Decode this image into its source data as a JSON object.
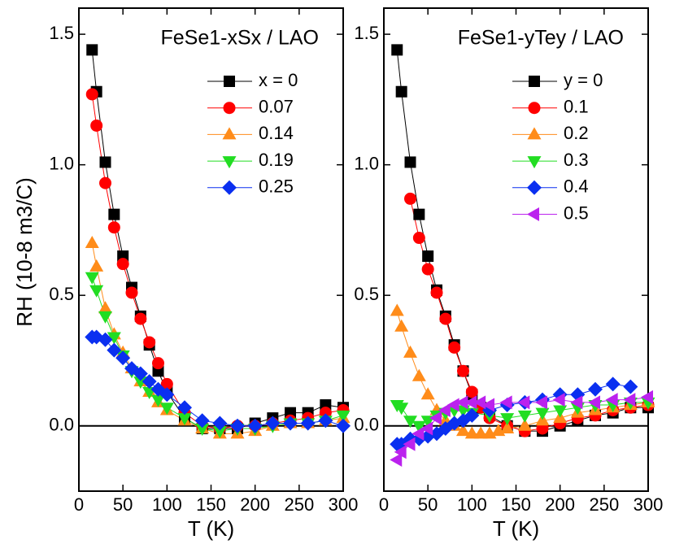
{
  "y_label": "RH (10-8 m3/C)",
  "chart_data": [
    {
      "type": "line",
      "title": "FeSe1-xSx / LAO",
      "x_label": "T (K)",
      "xlim": [
        0,
        300
      ],
      "xticks": [
        0,
        50,
        100,
        150,
        200,
        250,
        300
      ],
      "ylim": [
        -0.25,
        1.6
      ],
      "yticks": [
        {
          "value": 0,
          "label": "0.0"
        },
        0.5,
        {
          "value": 1,
          "label": "1.0"
        },
        1.5
      ],
      "series": [
        {
          "name": "x = 0",
          "color": "#000000",
          "marker": "square",
          "x": [
            15,
            20,
            30,
            40,
            50,
            60,
            70,
            80,
            90,
            100,
            120,
            140,
            160,
            180,
            200,
            220,
            240,
            260,
            280,
            300
          ],
          "values": [
            1.44,
            1.28,
            1.01,
            0.81,
            0.65,
            0.53,
            0.42,
            0.31,
            0.21,
            0.13,
            0.03,
            -0.01,
            -0.01,
            -0.01,
            0.01,
            0.03,
            0.05,
            0.05,
            0.08,
            0.07
          ]
        },
        {
          "name": "0.07",
          "color": "#ff0000",
          "marker": "circle",
          "x": [
            15,
            20,
            30,
            40,
            50,
            60,
            70,
            80,
            90,
            100,
            120,
            140,
            160,
            180,
            200,
            220,
            240,
            260,
            280,
            300
          ],
          "values": [
            1.27,
            1.15,
            0.93,
            0.76,
            0.62,
            0.51,
            0.41,
            0.32,
            0.24,
            0.16,
            0.05,
            0,
            -0.01,
            0,
            0,
            0.01,
            0.02,
            0.03,
            0.05,
            0.06
          ]
        },
        {
          "name": "0.14",
          "color": "#ff8c1a",
          "marker": "triangle-up",
          "x": [
            15,
            20,
            30,
            40,
            50,
            60,
            70,
            80,
            90,
            100,
            120,
            140,
            160,
            180,
            200,
            220,
            240,
            260,
            280,
            300
          ],
          "values": [
            0.7,
            0.61,
            0.45,
            0.35,
            0.28,
            0.22,
            0.17,
            0.13,
            0.09,
            0.06,
            0.02,
            -0.01,
            -0.03,
            -0.03,
            -0.02,
            0,
            0.01,
            0.01,
            0.02,
            0.03
          ]
        },
        {
          "name": "0.19",
          "color": "#22dd22",
          "marker": "triangle-down",
          "x": [
            15,
            20,
            30,
            40,
            50,
            60,
            70,
            80,
            90,
            100,
            120,
            140,
            160,
            180,
            200,
            220,
            240,
            260,
            280,
            300
          ],
          "values": [
            0.57,
            0.52,
            0.42,
            0.34,
            0.27,
            0.21,
            0.17,
            0.13,
            0.1,
            0.07,
            0.03,
            -0.01,
            -0.02,
            -0.01,
            -0.01,
            0,
            0.01,
            0.01,
            0.02,
            0.04
          ]
        },
        {
          "name": "0.25",
          "color": "#0a2ff0",
          "marker": "diamond",
          "x": [
            15,
            20,
            30,
            40,
            50,
            60,
            70,
            80,
            90,
            100,
            120,
            140,
            160,
            180,
            200,
            220,
            240,
            260,
            280,
            300
          ],
          "values": [
            0.34,
            0.34,
            0.33,
            0.29,
            0.26,
            0.22,
            0.2,
            0.17,
            0.14,
            0.12,
            0.07,
            0.02,
            0.01,
            0,
            0,
            0.01,
            0.01,
            0.01,
            0.02,
            0
          ]
        }
      ]
    },
    {
      "type": "line",
      "title": "FeSe1-yTey / LAO",
      "x_label": "T (K)",
      "xlim": [
        0,
        300
      ],
      "xticks": [
        0,
        50,
        100,
        150,
        200,
        250,
        300
      ],
      "ylim": [
        -0.25,
        1.6
      ],
      "yticks": [
        {
          "value": 0,
          "label": "0.0"
        },
        0.5,
        {
          "value": 1,
          "label": "1.0"
        },
        1.5
      ],
      "series": [
        {
          "name": "y = 0",
          "color": "#000000",
          "marker": "square",
          "x": [
            15,
            20,
            30,
            40,
            50,
            60,
            70,
            80,
            90,
            100,
            110,
            120,
            140,
            160,
            180,
            200,
            220,
            240,
            260,
            280,
            300
          ],
          "values": [
            1.44,
            1.28,
            1.01,
            0.81,
            0.65,
            0.52,
            0.42,
            0.31,
            0.21,
            0.12,
            0.07,
            0.04,
            0,
            -0.02,
            -0.02,
            0,
            0.02,
            0.04,
            0.05,
            0.07,
            0.07
          ]
        },
        {
          "name": "0.1",
          "color": "#ff0000",
          "marker": "circle",
          "x": [
            30,
            40,
            50,
            60,
            70,
            80,
            90,
            100,
            110,
            120,
            140,
            160,
            180,
            200,
            220,
            240,
            260,
            280,
            300
          ],
          "values": [
            0.87,
            0.72,
            0.6,
            0.51,
            0.41,
            0.3,
            0.21,
            0.13,
            0.07,
            0.03,
            0,
            -0.02,
            -0.01,
            0.01,
            0.03,
            0.04,
            0.06,
            0.07,
            0.08
          ]
        },
        {
          "name": "0.2",
          "color": "#ff8c1a",
          "marker": "triangle-up",
          "x": [
            15,
            20,
            30,
            40,
            50,
            60,
            70,
            80,
            90,
            100,
            110,
            120,
            130,
            140,
            160,
            180,
            200,
            220,
            240,
            260,
            280,
            300
          ],
          "values": [
            0.44,
            0.38,
            0.28,
            0.19,
            0.12,
            0.06,
            0.02,
            0,
            -0.02,
            -0.03,
            -0.03,
            -0.03,
            -0.02,
            -0.01,
            0,
            0.02,
            0.03,
            0.05,
            0.06,
            0.07,
            0.08,
            0.09
          ]
        },
        {
          "name": "0.3",
          "color": "#22dd22",
          "marker": "triangle-down",
          "x": [
            15,
            20,
            30,
            40,
            50,
            60,
            70,
            80,
            90,
            100,
            120,
            140,
            160,
            180,
            200,
            220,
            240,
            260,
            280,
            300
          ],
          "values": [
            0.08,
            0.07,
            0.02,
            0,
            0.02,
            0.04,
            0.05,
            0.06,
            0.06,
            0.05,
            0.04,
            0.03,
            0.04,
            0.05,
            0.06,
            0.07,
            0.08,
            0.08,
            0.09,
            0.09
          ]
        },
        {
          "name": "0.4",
          "color": "#0a2ff0",
          "marker": "diamond",
          "x": [
            15,
            20,
            30,
            40,
            50,
            60,
            70,
            80,
            90,
            100,
            120,
            140,
            160,
            180,
            200,
            220,
            240,
            260,
            280
          ],
          "values": [
            -0.07,
            -0.07,
            -0.05,
            -0.05,
            -0.04,
            -0.03,
            -0.01,
            0.01,
            0.02,
            0.04,
            0.06,
            0.08,
            0.09,
            0.1,
            0.12,
            0.12,
            0.14,
            0.16,
            0.15
          ]
        },
        {
          "name": "0.5",
          "color": "#bb22ee",
          "marker": "triangle-left",
          "x": [
            15,
            20,
            30,
            40,
            50,
            60,
            70,
            80,
            90,
            100,
            110,
            120,
            140,
            160,
            180,
            200,
            220,
            240,
            260,
            280,
            300
          ],
          "values": [
            -0.13,
            -0.1,
            -0.07,
            -0.03,
            -0.01,
            0.03,
            0.06,
            0.08,
            0.09,
            0.09,
            0.09,
            0.08,
            0.09,
            0.09,
            0.09,
            0.1,
            0.09,
            0.09,
            0.1,
            0.1,
            0.11
          ]
        }
      ]
    }
  ]
}
